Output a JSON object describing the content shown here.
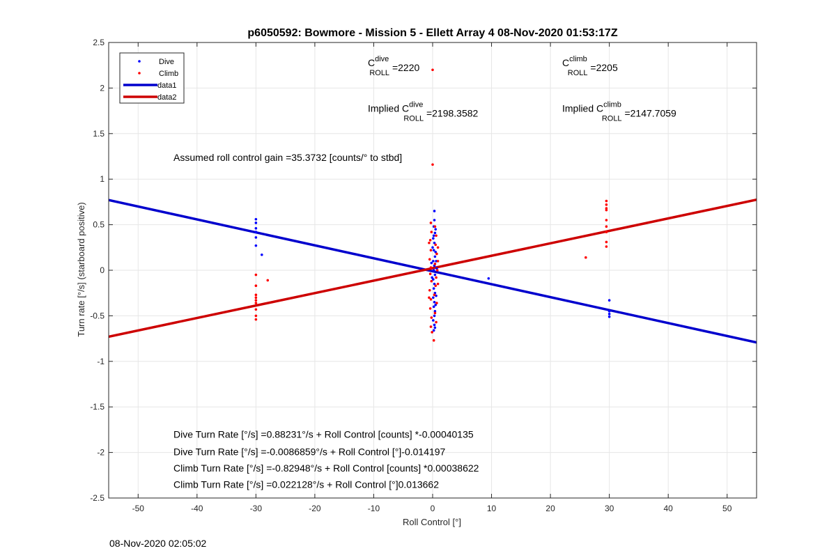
{
  "chart_data": {
    "type": "scatter",
    "title": "p6050592: Bowmore - Mission 5 - Ellett Array 4 08-Nov-2020 01:53:17Z",
    "xlabel": "Roll Control [°]",
    "ylabel": "Turn rate [°/s] (starboard positive)",
    "xlim": [
      -55,
      55
    ],
    "ylim": [
      -2.5,
      2.5
    ],
    "xticks": [
      -50,
      -40,
      -30,
      -20,
      -10,
      0,
      10,
      20,
      30,
      40,
      50
    ],
    "yticks": [
      -2.5,
      -2,
      -1.5,
      -1,
      -0.5,
      0,
      0.5,
      1,
      1.5,
      2,
      2.5
    ],
    "grid": true,
    "legend_position": "top-left",
    "legend": [
      {
        "name": "Dive",
        "kind": "marker",
        "color": "#0000ff"
      },
      {
        "name": "Climb",
        "kind": "marker",
        "color": "#ff0000"
      },
      {
        "name": "data1",
        "kind": "line",
        "color": "#0000cd"
      },
      {
        "name": "data2",
        "kind": "line",
        "color": "#cd0000"
      }
    ],
    "series": [
      {
        "name": "Dive",
        "kind": "scatter",
        "color": "#0000ff",
        "points": [
          [
            -30,
            0.56
          ],
          [
            -30,
            0.52
          ],
          [
            -30,
            0.46
          ],
          [
            -30,
            0.42
          ],
          [
            -30,
            0.36
          ],
          [
            -30,
            0.27
          ],
          [
            -29,
            0.17
          ],
          [
            9.5,
            -0.09
          ],
          [
            30,
            -0.33
          ],
          [
            30,
            -0.45
          ],
          [
            30,
            -0.48
          ],
          [
            30,
            -0.51
          ],
          [
            0.3,
            0.65
          ],
          [
            0.3,
            0.55
          ],
          [
            0.2,
            0.48
          ],
          [
            0.4,
            0.41
          ],
          [
            0.1,
            0.35
          ],
          [
            0.3,
            0.3
          ],
          [
            0.2,
            0.22
          ],
          [
            0.4,
            0.15
          ],
          [
            0.1,
            0.1
          ],
          [
            0.3,
            0.05
          ],
          [
            0.2,
            0.0
          ],
          [
            0.4,
            -0.05
          ],
          [
            0.1,
            -0.1
          ],
          [
            0.3,
            -0.15
          ],
          [
            0.2,
            -0.2
          ],
          [
            0.4,
            -0.25
          ],
          [
            0.1,
            -0.3
          ],
          [
            0.3,
            -0.35
          ],
          [
            0.2,
            -0.4
          ],
          [
            0.4,
            -0.45
          ],
          [
            0.3,
            -0.5
          ],
          [
            0.1,
            -0.55
          ],
          [
            0.3,
            -0.6
          ],
          [
            0.4,
            -0.63
          ],
          [
            0.2,
            -0.66
          ],
          [
            0.5,
            0.2
          ],
          [
            0.6,
            0.1
          ],
          [
            -0.1,
            -0.08
          ],
          [
            0.6,
            -0.28
          ],
          [
            0.0,
            0.25
          ],
          [
            0.5,
            -0.38
          ],
          [
            -0.2,
            0.08
          ],
          [
            0.7,
            0.02
          ],
          [
            0.2,
            0.38
          ],
          [
            0.5,
            0.45
          ]
        ]
      },
      {
        "name": "Climb",
        "kind": "scatter",
        "color": "#ff0000",
        "points": [
          [
            0,
            2.2
          ],
          [
            0,
            1.16
          ],
          [
            29.5,
            0.76
          ],
          [
            29.5,
            0.72
          ],
          [
            29.5,
            0.68
          ],
          [
            29.5,
            0.66
          ],
          [
            29.5,
            0.55
          ],
          [
            29.5,
            0.48
          ],
          [
            29.5,
            0.42
          ],
          [
            29.5,
            0.31
          ],
          [
            29.5,
            0.26
          ],
          [
            26,
            0.14
          ],
          [
            -30,
            -0.05
          ],
          [
            -30,
            -0.17
          ],
          [
            -30,
            -0.27
          ],
          [
            -30,
            -0.3
          ],
          [
            -30,
            -0.33
          ],
          [
            -30,
            -0.36
          ],
          [
            -30,
            -0.43
          ],
          [
            -30,
            -0.5
          ],
          [
            -30,
            -0.54
          ],
          [
            -28,
            -0.11
          ],
          [
            -0.3,
            0.52
          ],
          [
            0.4,
            0.48
          ],
          [
            -0.2,
            0.42
          ],
          [
            0.6,
            0.38
          ],
          [
            -0.4,
            0.33
          ],
          [
            0.5,
            0.28
          ],
          [
            -0.3,
            0.22
          ],
          [
            0.7,
            0.18
          ],
          [
            -0.5,
            0.12
          ],
          [
            0.4,
            0.07
          ],
          [
            -0.3,
            0.03
          ],
          [
            0.8,
            0.0
          ],
          [
            -0.4,
            -0.04
          ],
          [
            0.6,
            -0.08
          ],
          [
            -0.2,
            -0.12
          ],
          [
            0.5,
            -0.17
          ],
          [
            -0.5,
            -0.22
          ],
          [
            0.3,
            -0.27
          ],
          [
            -0.3,
            -0.32
          ],
          [
            0.7,
            -0.36
          ],
          [
            -0.4,
            -0.42
          ],
          [
            0.4,
            -0.47
          ],
          [
            -0.2,
            -0.52
          ],
          [
            0.6,
            -0.57
          ],
          [
            -0.3,
            -0.62
          ],
          [
            -0.1,
            -0.68
          ],
          [
            0.2,
            -0.77
          ],
          [
            0.9,
            0.25
          ],
          [
            0.9,
            -0.15
          ],
          [
            -0.6,
            0.3
          ],
          [
            0.9,
            0.1
          ],
          [
            -0.6,
            -0.3
          ]
        ]
      },
      {
        "name": "data1",
        "kind": "line",
        "color": "#0000cd",
        "x": [
          -55,
          55
        ],
        "y": [
          0.771,
          -0.793
        ]
      },
      {
        "name": "data2",
        "kind": "line",
        "color": "#cd0000",
        "x": [
          -55,
          55
        ],
        "y": [
          -0.729,
          0.774
        ]
      }
    ],
    "annotations": [
      {
        "id": "c-dive",
        "at": [
          -11,
          2.24
        ],
        "parts": [
          {
            "t": "C"
          },
          {
            "t": "dive",
            "role": "sup"
          },
          {
            "t": "ROLL",
            "role": "sub"
          },
          {
            "t": " =2220"
          }
        ]
      },
      {
        "id": "c-climb",
        "at": [
          22,
          2.24
        ],
        "parts": [
          {
            "t": "C"
          },
          {
            "t": "climb",
            "role": "sup"
          },
          {
            "t": "ROLL",
            "role": "sub"
          },
          {
            "t": " =2205"
          }
        ]
      },
      {
        "id": "implied-dive",
        "at": [
          -11,
          1.74
        ],
        "parts": [
          {
            "t": "Implied C"
          },
          {
            "t": "dive",
            "role": "sup"
          },
          {
            "t": "ROLL",
            "role": "sub"
          },
          {
            "t": " =2198.3582"
          }
        ]
      },
      {
        "id": "implied-climb",
        "at": [
          22,
          1.74
        ],
        "parts": [
          {
            "t": "Implied C"
          },
          {
            "t": "climb",
            "role": "sup"
          },
          {
            "t": "ROLL",
            "role": "sub"
          },
          {
            "t": " =2147.7059"
          }
        ]
      },
      {
        "id": "roll-gain",
        "at": [
          -44,
          1.2
        ],
        "parts": [
          {
            "t": "Assumed roll control gain =35.3732 [counts/° to stbd]"
          }
        ]
      },
      {
        "id": "dive-fit-counts",
        "at": [
          -44,
          -1.84
        ],
        "parts": [
          {
            "t": "Dive Turn Rate [°/s] =0.88231°/s + Roll Control [counts] *-0.00040135"
          }
        ]
      },
      {
        "id": "dive-fit-deg",
        "at": [
          -44,
          -2.03
        ],
        "parts": [
          {
            "t": "Dive Turn Rate [°/s] =-0.0086859°/s + Roll Control [°]-0.014197"
          }
        ]
      },
      {
        "id": "climb-fit-counts",
        "at": [
          -44,
          -2.21
        ],
        "parts": [
          {
            "t": "Climb Turn Rate [°/s] =-0.82948°/s + Roll Control [counts] *0.00038622"
          }
        ]
      },
      {
        "id": "climb-fit-deg",
        "at": [
          -44,
          -2.39
        ],
        "parts": [
          {
            "t": "Climb Turn Rate [°/s] =0.022128°/s + Roll Control [°]0.013662"
          }
        ]
      }
    ]
  },
  "footer": {
    "timestamp": "08-Nov-2020 02:05:02"
  }
}
